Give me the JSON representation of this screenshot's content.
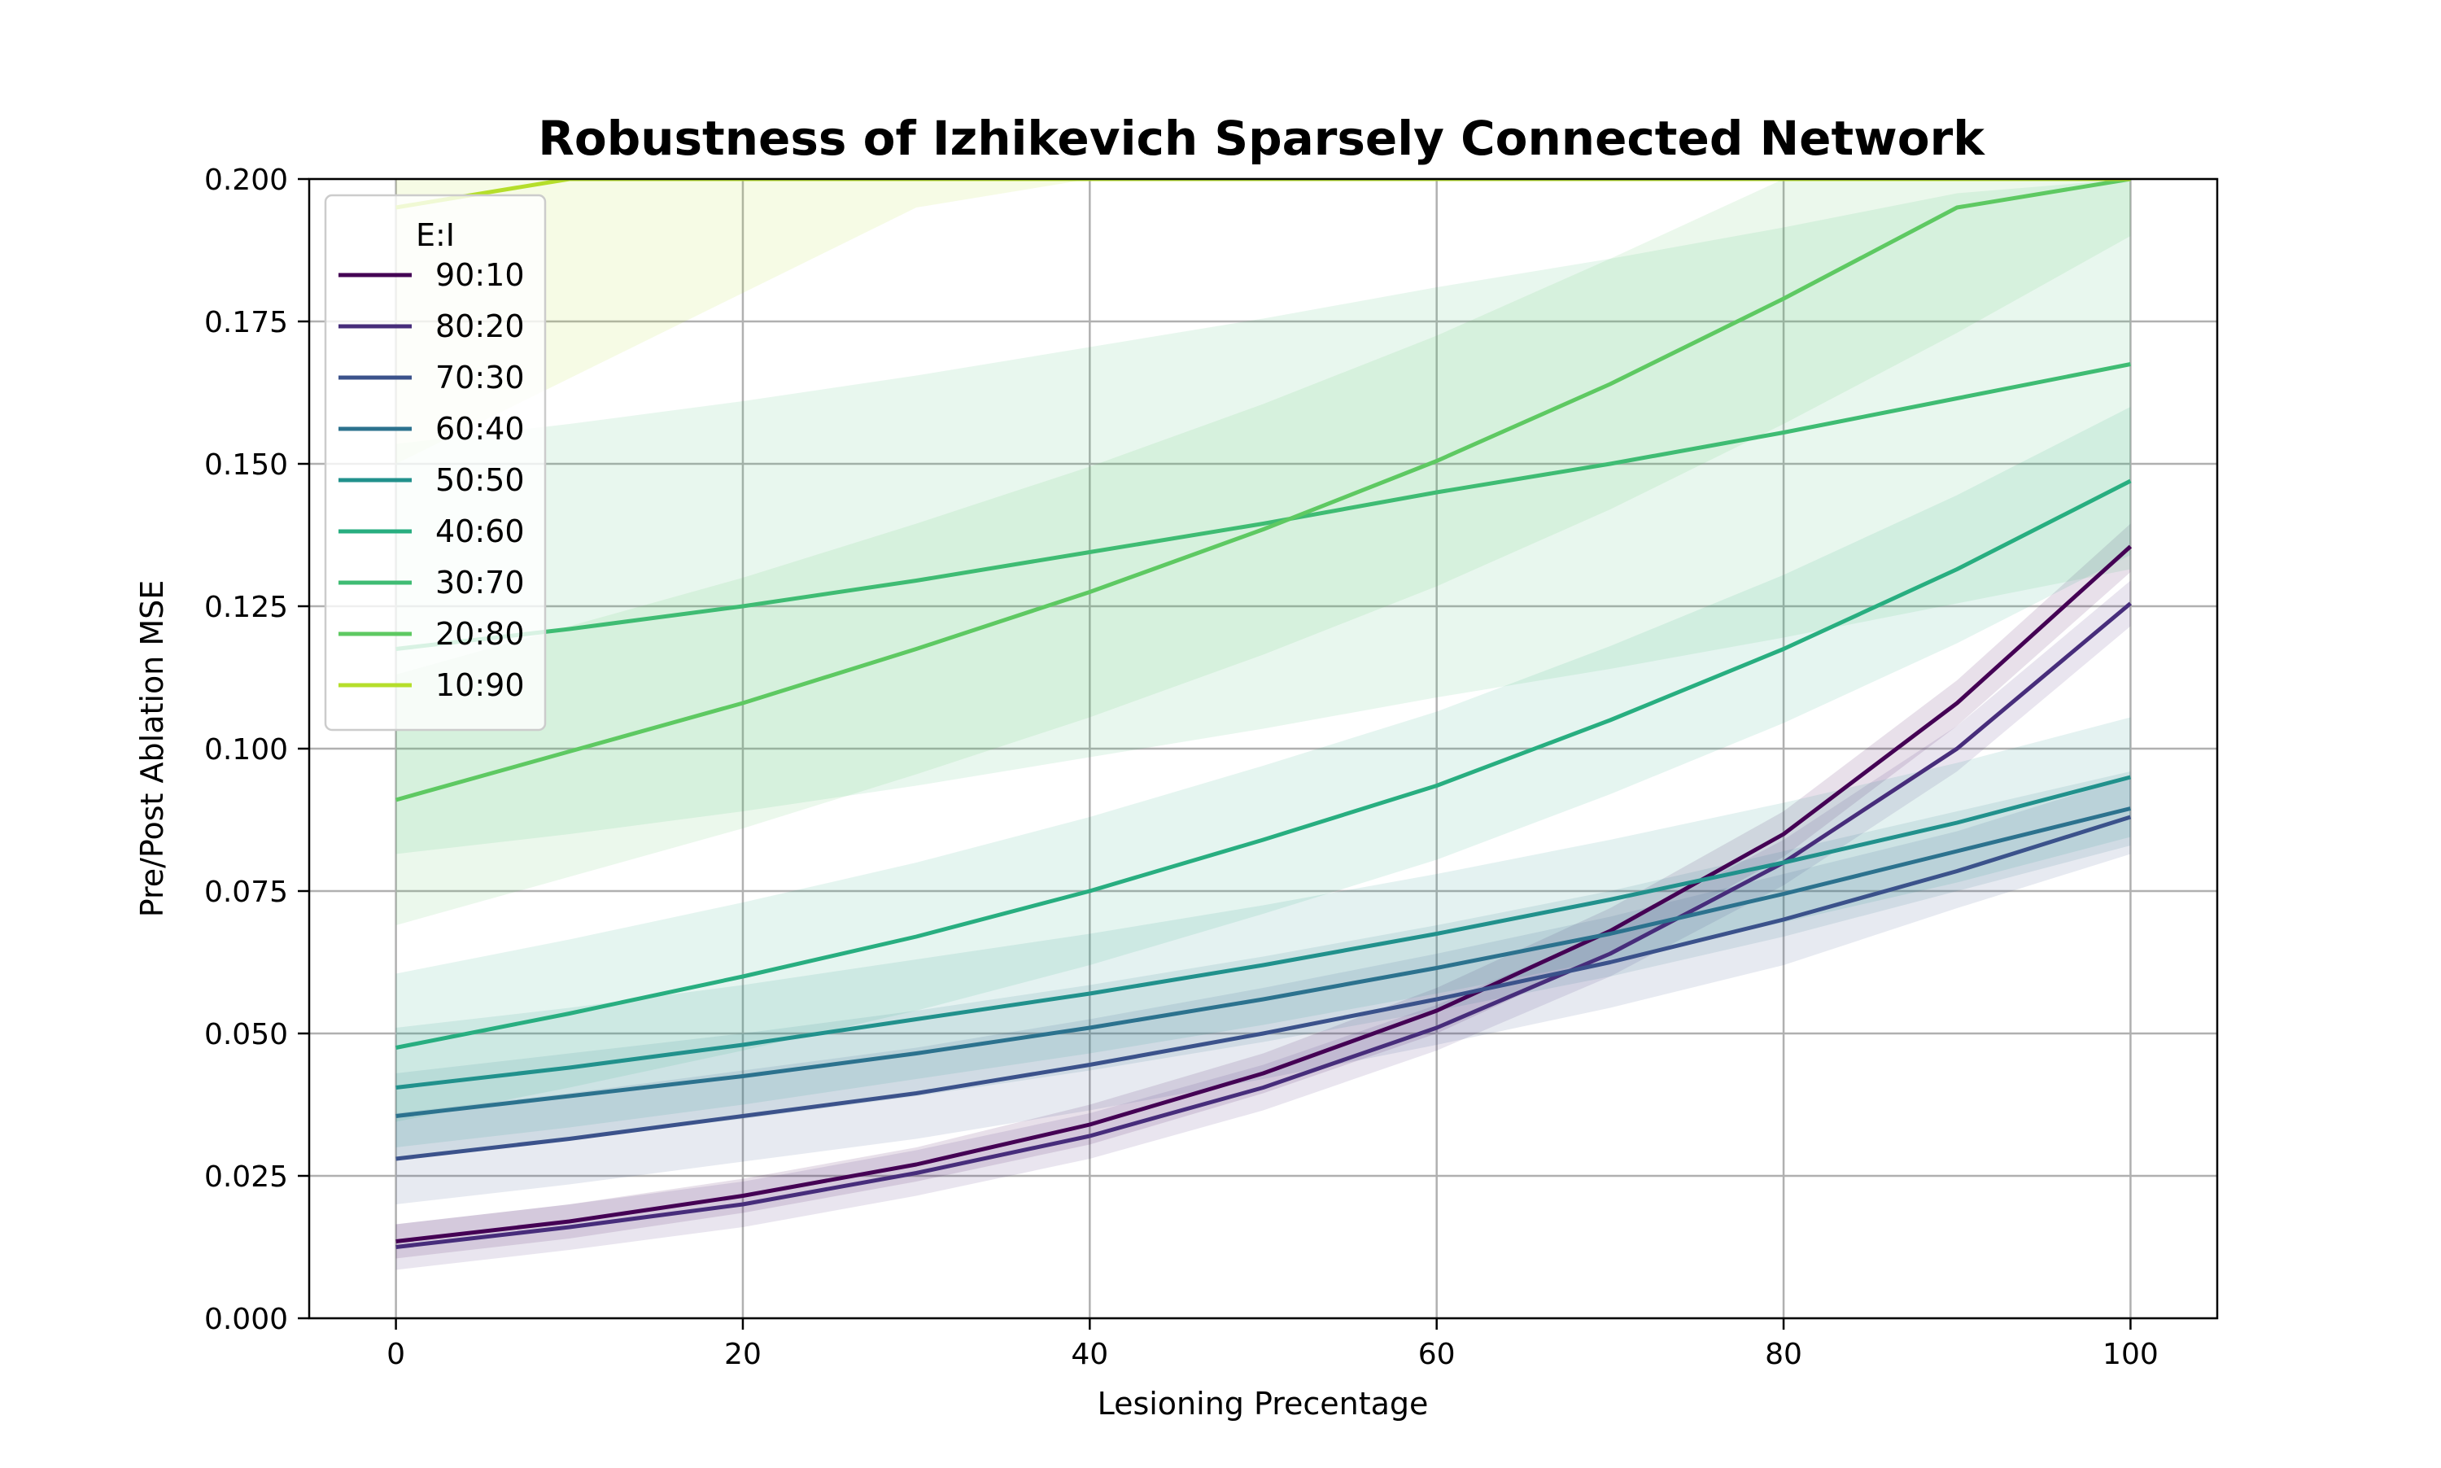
{
  "chart_data": {
    "type": "line",
    "title": "Robustness of Izhikevich Sparsely Connected Network",
    "xlabel": "Lesioning Precentage",
    "ylabel": "Pre/Post Ablation MSE",
    "xlim": [
      -5,
      105
    ],
    "ylim": [
      0,
      0.2
    ],
    "xticks": [
      0,
      20,
      40,
      60,
      80,
      100
    ],
    "yticks": [
      0.0,
      0.025,
      0.05,
      0.075,
      0.1,
      0.125,
      0.15,
      0.175,
      0.2
    ],
    "xtick_labels": [
      "0",
      "20",
      "40",
      "60",
      "80",
      "100"
    ],
    "ytick_labels": [
      "0.000",
      "0.025",
      "0.050",
      "0.075",
      "0.100",
      "0.125",
      "0.150",
      "0.175",
      "0.200"
    ],
    "grid": true,
    "confidence_bands": true,
    "legend": {
      "title": "E:I",
      "position": "upper-left"
    },
    "x": [
      0,
      10,
      20,
      30,
      40,
      50,
      60,
      70,
      80,
      90,
      100
    ],
    "series": [
      {
        "name": "90:10",
        "color": "#440154",
        "values": [
          0.0135,
          0.017,
          0.0215,
          0.027,
          0.034,
          0.043,
          0.054,
          0.068,
          0.085,
          0.108,
          0.1355
        ],
        "lower": [
          0.0105,
          0.014,
          0.0185,
          0.024,
          0.0305,
          0.0395,
          0.05,
          0.064,
          0.081,
          0.104,
          0.131
        ],
        "upper": [
          0.0165,
          0.02,
          0.0245,
          0.03,
          0.0375,
          0.0465,
          0.058,
          0.072,
          0.089,
          0.112,
          0.1395
        ]
      },
      {
        "name": "80:20",
        "color": "#472d7b",
        "values": [
          0.0125,
          0.016,
          0.02,
          0.0255,
          0.032,
          0.0405,
          0.051,
          0.064,
          0.08,
          0.1,
          0.1255
        ],
        "lower": [
          0.0085,
          0.012,
          0.016,
          0.0215,
          0.028,
          0.0365,
          0.047,
          0.06,
          0.076,
          0.096,
          0.1215
        ],
        "upper": [
          0.0165,
          0.02,
          0.024,
          0.0295,
          0.036,
          0.0445,
          0.055,
          0.068,
          0.084,
          0.104,
          0.1295
        ]
      },
      {
        "name": "70:30",
        "color": "#3b528b",
        "values": [
          0.028,
          0.0315,
          0.0355,
          0.0395,
          0.0445,
          0.05,
          0.056,
          0.0625,
          0.07,
          0.0785,
          0.088
        ],
        "lower": [
          0.02,
          0.0235,
          0.0275,
          0.0315,
          0.0365,
          0.042,
          0.048,
          0.0545,
          0.062,
          0.072,
          0.0815
        ],
        "upper": [
          0.036,
          0.0395,
          0.0435,
          0.0475,
          0.0525,
          0.058,
          0.064,
          0.0705,
          0.078,
          0.0855,
          0.095
        ]
      },
      {
        "name": "60:40",
        "color": "#2c728e",
        "values": [
          0.0355,
          0.039,
          0.0425,
          0.0465,
          0.051,
          0.056,
          0.0615,
          0.0675,
          0.0745,
          0.082,
          0.0895
        ],
        "lower": [
          0.028,
          0.0315,
          0.035,
          0.039,
          0.0435,
          0.0485,
          0.054,
          0.06,
          0.067,
          0.075,
          0.083
        ],
        "upper": [
          0.043,
          0.0465,
          0.05,
          0.054,
          0.0585,
          0.0635,
          0.069,
          0.075,
          0.082,
          0.089,
          0.096
        ]
      },
      {
        "name": "50:50",
        "color": "#21918c",
        "values": [
          0.0405,
          0.044,
          0.048,
          0.0525,
          0.057,
          0.062,
          0.0675,
          0.0735,
          0.08,
          0.087,
          0.095
        ],
        "lower": [
          0.03,
          0.0335,
          0.0375,
          0.042,
          0.0465,
          0.0515,
          0.057,
          0.063,
          0.0695,
          0.0765,
          0.0845
        ],
        "upper": [
          0.051,
          0.0545,
          0.0585,
          0.063,
          0.0675,
          0.0725,
          0.078,
          0.084,
          0.0905,
          0.0975,
          0.1055
        ]
      },
      {
        "name": "40:60",
        "color": "#28ae80",
        "values": [
          0.0475,
          0.0535,
          0.06,
          0.067,
          0.075,
          0.084,
          0.0935,
          0.105,
          0.1175,
          0.1315,
          0.147
        ],
        "lower": [
          0.0345,
          0.0405,
          0.047,
          0.054,
          0.062,
          0.071,
          0.0805,
          0.092,
          0.1045,
          0.1185,
          0.134
        ],
        "upper": [
          0.0605,
          0.0665,
          0.073,
          0.08,
          0.088,
          0.097,
          0.1065,
          0.118,
          0.1305,
          0.1445,
          0.16
        ]
      },
      {
        "name": "30:70",
        "color": "#3fbc73",
        "values": [
          0.1175,
          0.121,
          0.125,
          0.1295,
          0.1345,
          0.1395,
          0.145,
          0.15,
          0.1555,
          0.1615,
          0.1675
        ],
        "lower": [
          0.0815,
          0.085,
          0.089,
          0.0935,
          0.0985,
          0.1035,
          0.109,
          0.114,
          0.1195,
          0.1255,
          0.1315
        ],
        "upper": [
          0.1535,
          0.157,
          0.161,
          0.1655,
          0.1705,
          0.1755,
          0.181,
          0.186,
          0.1915,
          0.1975,
          0.2
        ]
      },
      {
        "name": "20:80",
        "color": "#5ec962",
        "values": [
          0.091,
          0.0995,
          0.108,
          0.1175,
          0.1275,
          0.1385,
          0.1505,
          0.164,
          0.179,
          0.195,
          0.2
        ],
        "lower": [
          0.069,
          0.0775,
          0.086,
          0.0955,
          0.1055,
          0.1165,
          0.1285,
          0.142,
          0.157,
          0.173,
          0.19
        ],
        "upper": [
          0.113,
          0.1215,
          0.13,
          0.1395,
          0.1495,
          0.1605,
          0.1725,
          0.186,
          0.2,
          0.2,
          0.2
        ]
      },
      {
        "name": "10:90",
        "color": "#b5de2b",
        "values": [
          0.195,
          0.2,
          0.2,
          0.2,
          0.2,
          0.2,
          0.2,
          0.2,
          0.2,
          0.2,
          0.2
        ],
        "lower": [
          0.15,
          0.165,
          0.18,
          0.195,
          0.2,
          0.2,
          0.2,
          0.2,
          0.2,
          0.2,
          0.2
        ],
        "upper": [
          0.2,
          0.2,
          0.2,
          0.2,
          0.2,
          0.2,
          0.2,
          0.2,
          0.2,
          0.2,
          0.2
        ]
      }
    ]
  }
}
